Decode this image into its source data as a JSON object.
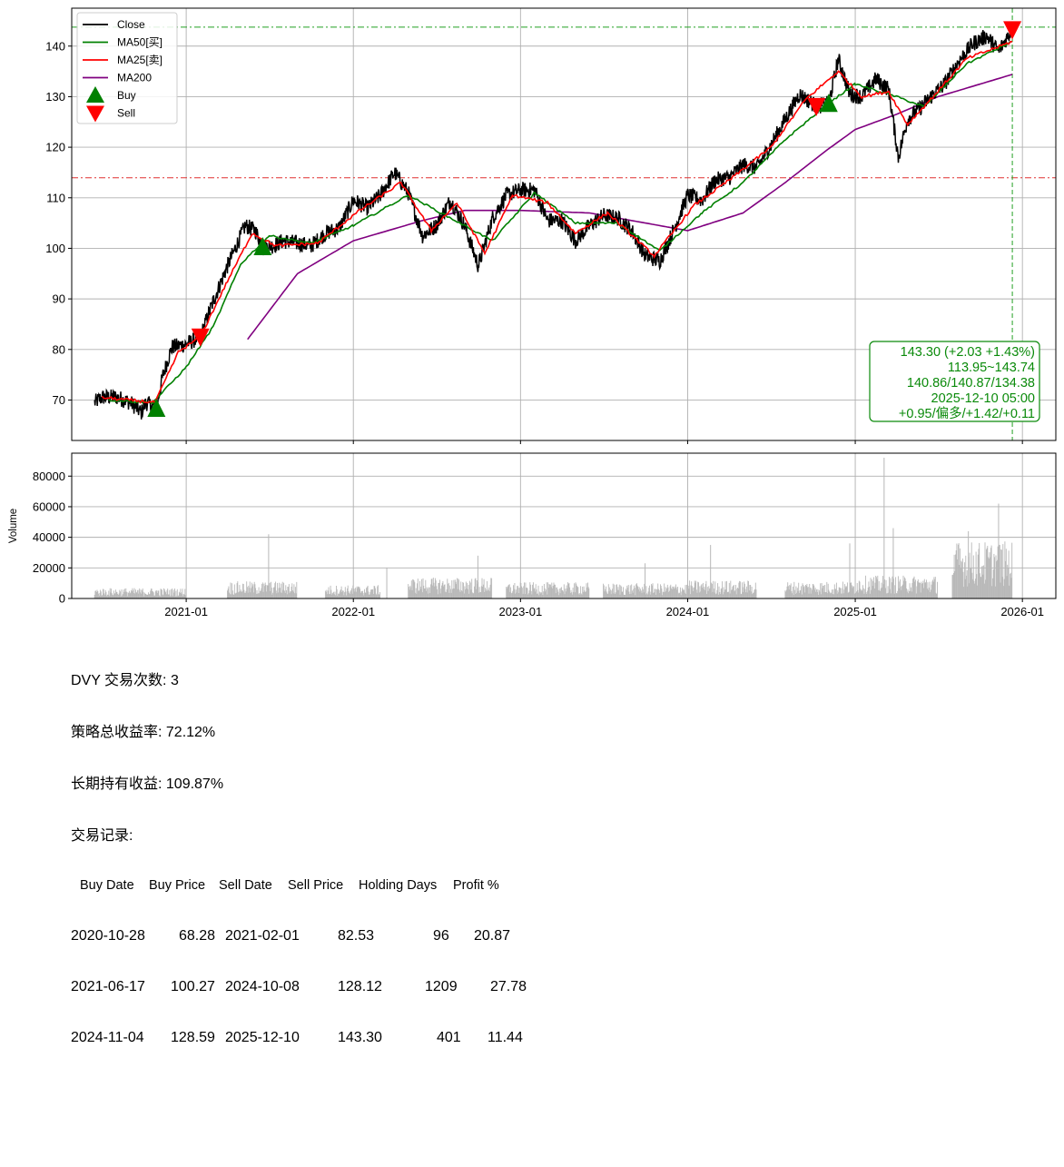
{
  "chart_data": [
    {
      "type": "line",
      "name": "price-panel",
      "ylim": [
        62,
        147.5
      ],
      "yticks": [
        70,
        80,
        90,
        100,
        110,
        120,
        130,
        140
      ],
      "xlim": [
        "2020-04-26",
        "2026-03-15"
      ],
      "grid": true,
      "legend_position": "top-left",
      "legend": [
        {
          "label": "Close",
          "color": "#000000",
          "kind": "line"
        },
        {
          "label": "MA50[买]",
          "color": "#008000",
          "kind": "line"
        },
        {
          "label": "MA25[卖]",
          "color": "#ff0000",
          "kind": "line"
        },
        {
          "label": "MA200",
          "color": "#800080",
          "kind": "line"
        },
        {
          "label": "Buy",
          "color": "#008000",
          "kind": "up-triangle"
        },
        {
          "label": "Sell",
          "color": "#ff0000",
          "kind": "down-triangle"
        }
      ],
      "close_anchors": [
        [
          "2020-06-15",
          69.5
        ],
        [
          "2020-07-01",
          70.5
        ],
        [
          "2020-08-01",
          70.6
        ],
        [
          "2020-09-01",
          69.5
        ],
        [
          "2020-09-25",
          67.5
        ],
        [
          "2020-10-05",
          69.5
        ],
        [
          "2020-10-28",
          68.3
        ],
        [
          "2020-11-10",
          74.5
        ],
        [
          "2020-12-01",
          80.5
        ],
        [
          "2021-01-01",
          81.0
        ],
        [
          "2021-02-01",
          82.5
        ],
        [
          "2021-03-01",
          89.5
        ],
        [
          "2021-04-01",
          96.5
        ],
        [
          "2021-05-10",
          104.5
        ],
        [
          "2021-06-01",
          103.5
        ],
        [
          "2021-06-17",
          100.3
        ],
        [
          "2021-07-10",
          100.5
        ],
        [
          "2021-08-01",
          101.5
        ],
        [
          "2021-09-01",
          101.0
        ],
        [
          "2021-10-01",
          100.5
        ],
        [
          "2021-11-01",
          103.0
        ],
        [
          "2021-12-01",
          104.0
        ],
        [
          "2022-01-01",
          109.5
        ],
        [
          "2022-02-01",
          108.0
        ],
        [
          "2022-03-01",
          110.5
        ],
        [
          "2022-04-01",
          115.0
        ],
        [
          "2022-05-01",
          111.0
        ],
        [
          "2022-06-01",
          102.5
        ],
        [
          "2022-07-01",
          104.5
        ],
        [
          "2022-08-01",
          109.5
        ],
        [
          "2022-09-01",
          104.5
        ],
        [
          "2022-10-01",
          96.5
        ],
        [
          "2022-11-01",
          106.0
        ],
        [
          "2022-12-01",
          110.5
        ],
        [
          "2023-01-01",
          111.5
        ],
        [
          "2023-02-01",
          111.5
        ],
        [
          "2023-03-01",
          105.5
        ],
        [
          "2023-04-01",
          105.5
        ],
        [
          "2023-05-01",
          101.5
        ],
        [
          "2023-06-01",
          104.5
        ],
        [
          "2023-07-01",
          106.5
        ],
        [
          "2023-08-01",
          106.0
        ],
        [
          "2023-09-01",
          103.5
        ],
        [
          "2023-10-01",
          98.5
        ],
        [
          "2023-11-01",
          97.5
        ],
        [
          "2023-12-01",
          103.5
        ],
        [
          "2024-01-01",
          110.5
        ],
        [
          "2024-02-01",
          109.5
        ],
        [
          "2024-03-01",
          113.5
        ],
        [
          "2024-04-01",
          114.0
        ],
        [
          "2024-05-01",
          116.5
        ],
        [
          "2024-06-01",
          116.0
        ],
        [
          "2024-07-01",
          120.5
        ],
        [
          "2024-08-01",
          125.5
        ],
        [
          "2024-09-01",
          130.5
        ],
        [
          "2024-10-08",
          128.1
        ],
        [
          "2024-11-04",
          128.6
        ],
        [
          "2024-11-25",
          137.5
        ],
        [
          "2024-12-20",
          130.5
        ],
        [
          "2025-01-15",
          130.0
        ],
        [
          "2025-02-15",
          133.5
        ],
        [
          "2025-03-15",
          131.5
        ],
        [
          "2025-04-05",
          118.0
        ],
        [
          "2025-04-25",
          125.5
        ],
        [
          "2025-05-20",
          127.5
        ],
        [
          "2025-06-15",
          130.0
        ],
        [
          "2025-07-15",
          132.5
        ],
        [
          "2025-08-15",
          137.0
        ],
        [
          "2025-09-15",
          140.5
        ],
        [
          "2025-10-15",
          142.0
        ],
        [
          "2025-11-10",
          139.0
        ],
        [
          "2025-12-10",
          143.3
        ]
      ],
      "ma200_anchors": [
        [
          "2021-05-15",
          82.0
        ],
        [
          "2021-09-01",
          95.0
        ],
        [
          "2022-01-01",
          101.5
        ],
        [
          "2022-06-01",
          105.5
        ],
        [
          "2022-09-01",
          107.5
        ],
        [
          "2023-01-01",
          107.5
        ],
        [
          "2023-06-01",
          107.0
        ],
        [
          "2023-10-01",
          105.0
        ],
        [
          "2024-01-01",
          103.5
        ],
        [
          "2024-05-01",
          107.0
        ],
        [
          "2024-08-01",
          113.0
        ],
        [
          "2024-11-01",
          119.5
        ],
        [
          "2025-01-01",
          123.5
        ],
        [
          "2025-04-01",
          126.5
        ],
        [
          "2025-07-01",
          130.0
        ],
        [
          "2025-10-01",
          132.5
        ],
        [
          "2025-12-10",
          134.4
        ]
      ],
      "ma50_anchors": [
        [
          "2020-07-15",
          70.0
        ],
        [
          "2020-10-20",
          69.5
        ],
        [
          "2021-01-01",
          76.5
        ],
        [
          "2021-03-01",
          84.5
        ],
        [
          "2021-05-01",
          97.0
        ],
        [
          "2021-07-01",
          102.5
        ],
        [
          "2021-10-01",
          101.0
        ],
        [
          "2022-01-01",
          104.5
        ],
        [
          "2022-05-01",
          110.5
        ],
        [
          "2022-08-01",
          106.0
        ],
        [
          "2022-11-01",
          101.5
        ],
        [
          "2023-02-01",
          111.0
        ],
        [
          "2023-05-01",
          105.0
        ],
        [
          "2023-08-01",
          105.0
        ],
        [
          "2023-11-01",
          99.5
        ],
        [
          "2024-02-01",
          107.0
        ],
        [
          "2024-05-01",
          113.0
        ],
        [
          "2024-08-01",
          121.5
        ],
        [
          "2024-11-01",
          128.5
        ],
        [
          "2025-01-01",
          132.5
        ],
        [
          "2025-04-01",
          130.0
        ],
        [
          "2025-06-01",
          128.0
        ],
        [
          "2025-09-01",
          136.5
        ],
        [
          "2025-12-10",
          140.9
        ]
      ],
      "ma25_anchors": [
        [
          "2020-07-01",
          70.5
        ],
        [
          "2020-10-25",
          69.5
        ],
        [
          "2020-12-15",
          79.5
        ],
        [
          "2021-02-01",
          82.5
        ],
        [
          "2021-04-01",
          93.5
        ],
        [
          "2021-05-25",
          103.0
        ],
        [
          "2021-07-15",
          100.5
        ],
        [
          "2021-10-15",
          101.0
        ],
        [
          "2022-01-15",
          107.5
        ],
        [
          "2022-04-15",
          113.0
        ],
        [
          "2022-06-20",
          103.5
        ],
        [
          "2022-08-15",
          109.0
        ],
        [
          "2022-10-15",
          99.0
        ],
        [
          "2022-12-15",
          110.5
        ],
        [
          "2023-03-01",
          109.0
        ],
        [
          "2023-05-01",
          103.0
        ],
        [
          "2023-07-10",
          107.0
        ],
        [
          "2023-10-20",
          98.5
        ],
        [
          "2024-01-15",
          108.5
        ],
        [
          "2024-04-01",
          113.5
        ],
        [
          "2024-07-01",
          120.0
        ],
        [
          "2024-09-15",
          129.5
        ],
        [
          "2024-11-25",
          135.0
        ],
        [
          "2025-01-15",
          130.0
        ],
        [
          "2025-03-15",
          131.0
        ],
        [
          "2025-04-25",
          124.5
        ],
        [
          "2025-06-15",
          129.5
        ],
        [
          "2025-09-01",
          137.5
        ],
        [
          "2025-12-10",
          140.9
        ]
      ],
      "buy_markers": [
        [
          "2020-10-28",
          68.28
        ],
        [
          "2021-06-17",
          100.27
        ],
        [
          "2024-11-04",
          128.59
        ]
      ],
      "sell_markers": [
        [
          "2021-02-01",
          82.53
        ],
        [
          "2024-10-08",
          128.12
        ],
        [
          "2025-12-10",
          143.3
        ]
      ],
      "reference_lines": {
        "hline_green": 143.74,
        "hline_red": 113.95,
        "vline_date": "2025-12-10"
      },
      "info_box": [
        "143.30 (+2.03 +1.43%)",
        "113.95~143.74",
        "140.86/140.87/134.38",
        "2025-12-10 05:00",
        "+0.95/偏多/+1.42/+0.11"
      ]
    },
    {
      "type": "bar",
      "name": "volume-panel",
      "ylabel": "Volume",
      "ylim": [
        0,
        95000
      ],
      "yticks": [
        0,
        20000,
        40000,
        60000,
        80000
      ],
      "xticks": [
        "2021-01",
        "2022-01",
        "2023-01",
        "2024-01",
        "2025-01",
        "2026-01"
      ],
      "volume_segments": [
        [
          "2020-06-15",
          "2020-12-31",
          5500
        ],
        [
          "2021-04-01",
          "2021-08-31",
          9000
        ],
        [
          "2021-11-01",
          "2022-02-28",
          7000
        ],
        [
          "2022-05-01",
          "2022-10-31",
          11000
        ],
        [
          "2022-12-01",
          "2023-05-31",
          8500
        ],
        [
          "2023-07-01",
          "2023-12-31",
          8000
        ],
        [
          "2024-01-01",
          "2024-05-31",
          9500
        ],
        [
          "2024-08-01",
          "2024-12-31",
          9000
        ],
        [
          "2025-01-01",
          "2025-06-30",
          12000
        ],
        [
          "2025-08-01",
          "2025-12-10",
          30000
        ]
      ],
      "volume_spikes": [
        [
          "2021-06-30",
          42000
        ],
        [
          "2022-03-15",
          20000
        ],
        [
          "2022-09-30",
          28000
        ],
        [
          "2023-09-30",
          23000
        ],
        [
          "2024-02-20",
          35000
        ],
        [
          "2024-12-20",
          36000
        ],
        [
          "2025-03-05",
          92000
        ],
        [
          "2025-03-25",
          46000
        ],
        [
          "2025-09-05",
          44000
        ],
        [
          "2025-11-10",
          62000
        ]
      ]
    }
  ],
  "stats": {
    "line1": "DVY 交易次数: 3",
    "line2": "策略总收益率: 72.12%",
    "line3": "长期持有收益: 109.87%",
    "line4": "交易记录:",
    "headers": [
      "Buy Date",
      "Buy Price",
      "Sell Date",
      "Sell Price",
      "Holding Days",
      "Profit %"
    ],
    "trades": [
      [
        "2020-10-28",
        "68.28",
        "2021-02-01",
        "82.53",
        "96",
        "20.87"
      ],
      [
        "2021-06-17",
        "100.27",
        "2024-10-08",
        "128.12",
        "1209",
        "27.78"
      ],
      [
        "2024-11-04",
        "128.59",
        "2025-12-10",
        "143.30",
        "401",
        "11.44"
      ]
    ]
  }
}
